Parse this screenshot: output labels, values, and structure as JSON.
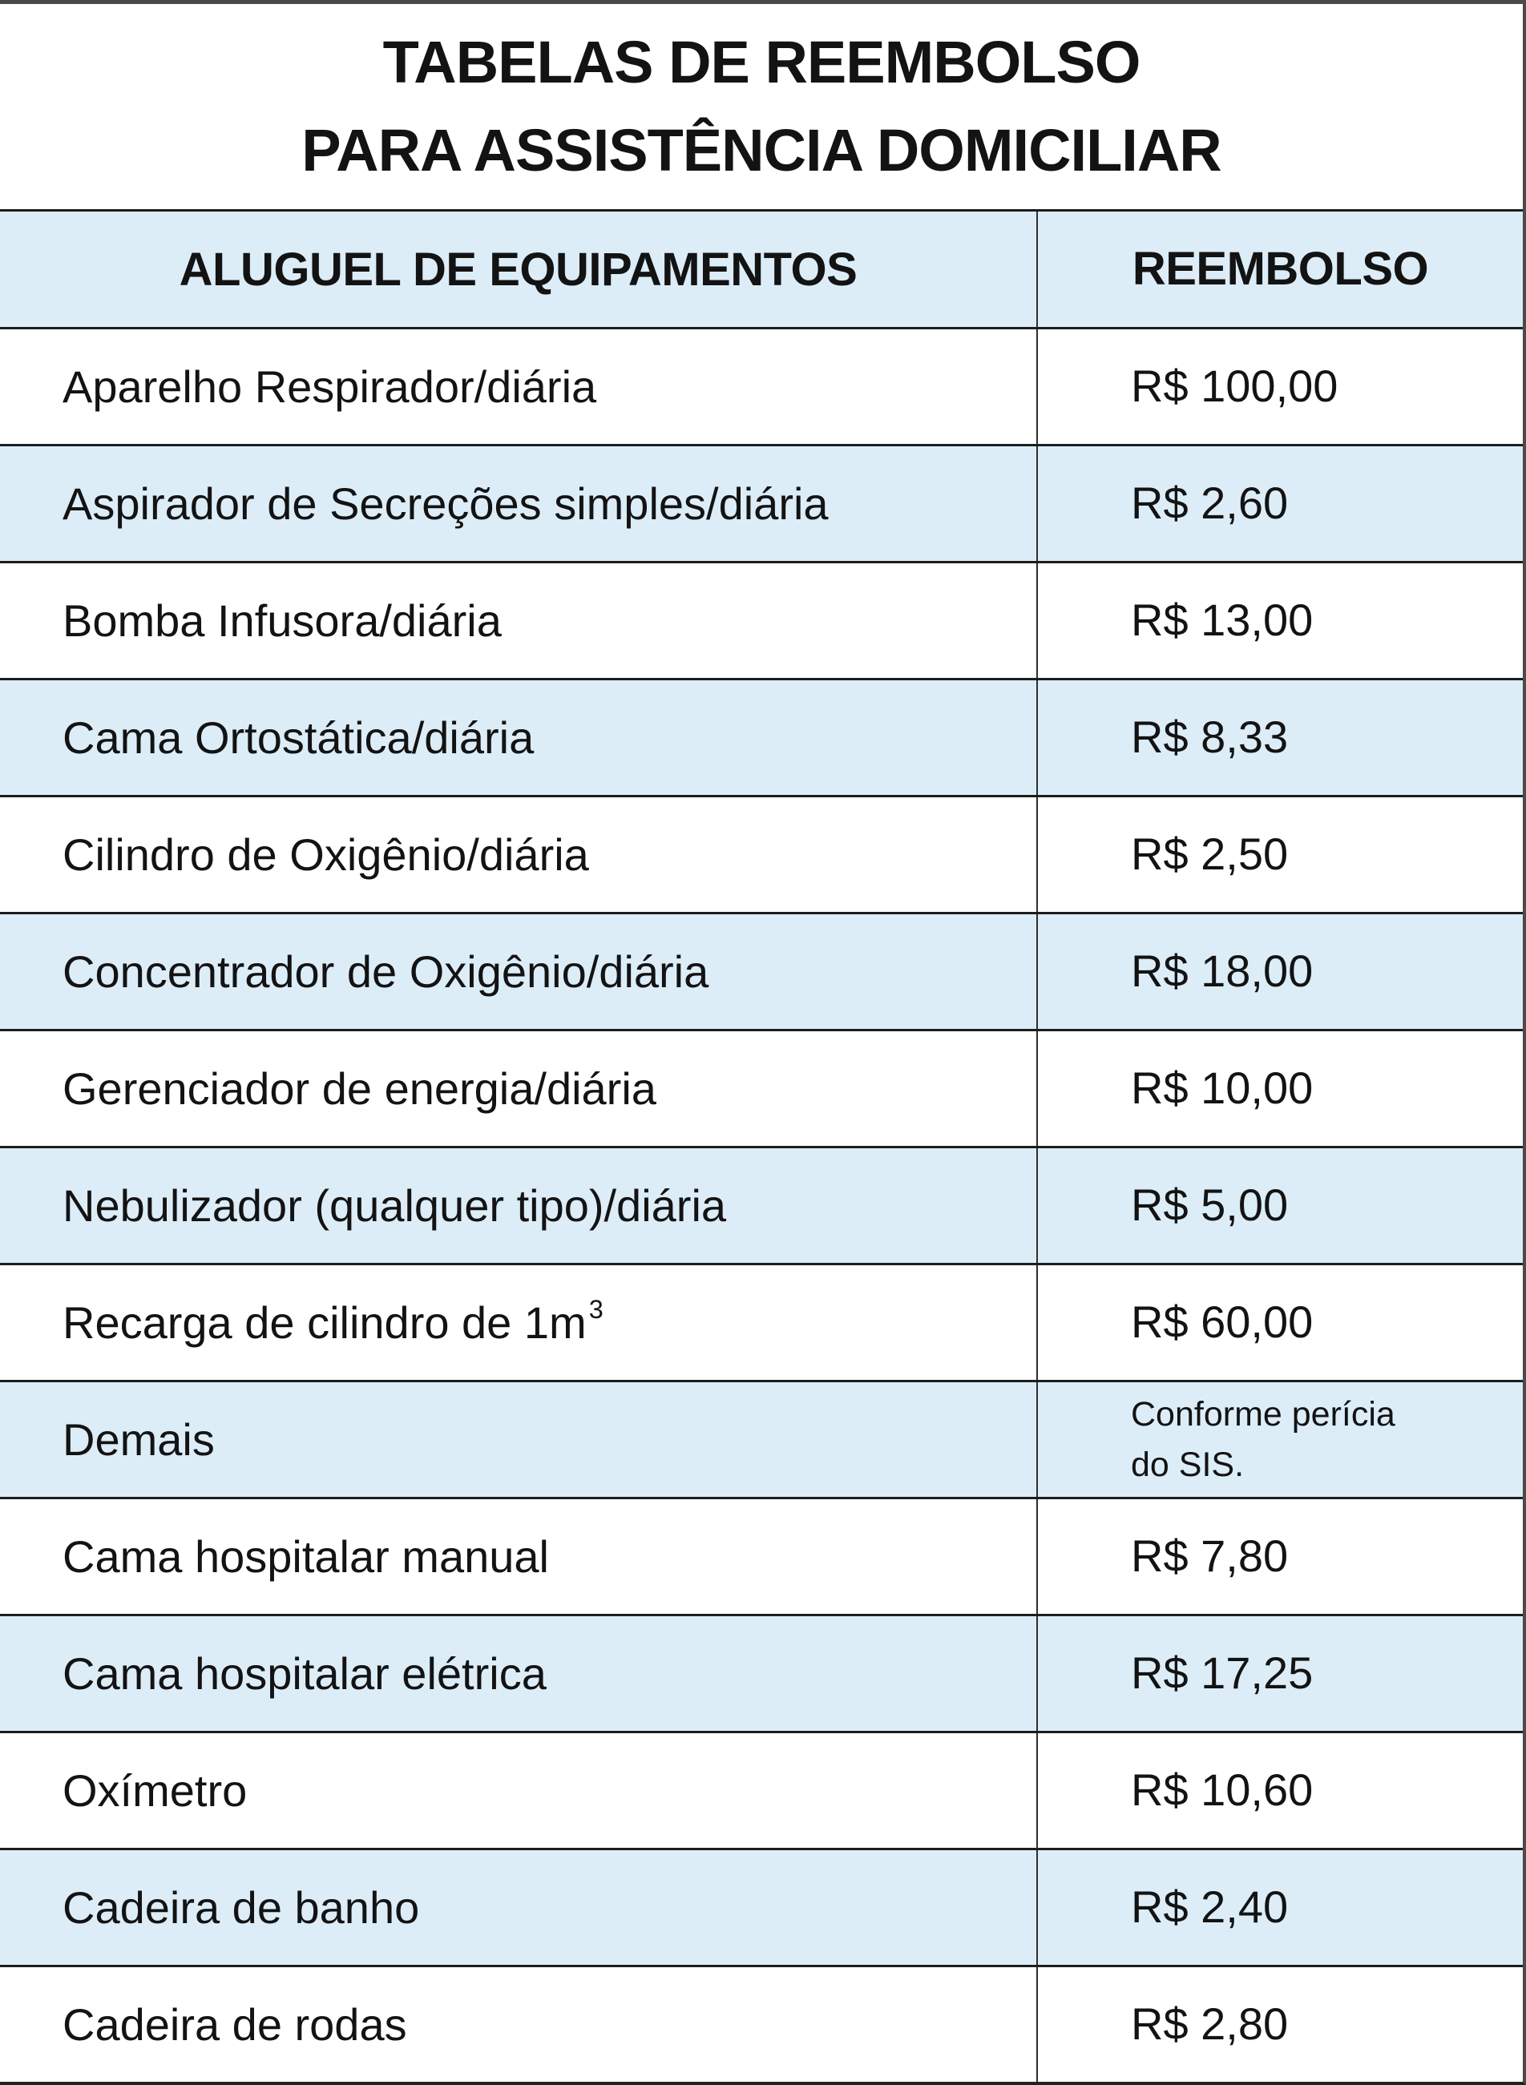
{
  "title": {
    "line1": "TABELAS DE REEMBOLSO",
    "line2": "PARA ASSISTÊNCIA DOMICILIAR"
  },
  "table": {
    "headers": {
      "equipment": "ALUGUEL DE EQUIPAMENTOS",
      "reimbursement": "REEMBOLSO"
    },
    "rows": [
      {
        "label": "Aparelho Respirador/diária",
        "value": "R$ 100,00"
      },
      {
        "label": "Aspirador de Secreções simples/diária",
        "value": "R$ 2,60"
      },
      {
        "label": "Bomba Infusora/diária",
        "value": "R$ 13,00"
      },
      {
        "label": "Cama Ortostática/diária",
        "value": "R$ 8,33"
      },
      {
        "label": "Cilindro de Oxigênio/diária",
        "value": "R$ 2,50"
      },
      {
        "label": "Concentrador de Oxigênio/diária",
        "value": "R$ 18,00"
      },
      {
        "label": "Gerenciador de energia/diária",
        "value": "R$ 10,00"
      },
      {
        "label": "Nebulizador (qualquer tipo)/diária",
        "value": "R$ 5,00"
      },
      {
        "label": "Recarga de cilindro de 1m",
        "label_sup": "3",
        "value": "R$ 60,00"
      },
      {
        "label": "Demais",
        "value": "Conforme perícia\ndo SIS."
      },
      {
        "label": "Cama hospitalar manual",
        "value": "R$ 7,80"
      },
      {
        "label": "Cama hospitalar elétrica",
        "value": "R$ 17,25"
      },
      {
        "label": "Oxímetro",
        "value": "R$ 10,60"
      },
      {
        "label": "Cadeira de banho",
        "value": "R$ 2,40"
      },
      {
        "label": "Cadeira de rodas",
        "value": "R$ 2,80"
      }
    ]
  },
  "colors": {
    "row_alt_blue": "#dcedf8",
    "row_white": "#ffffff",
    "rule_dark": "#1d1d1d",
    "edge_gray": "#4a4a4a",
    "text": "#131313"
  }
}
